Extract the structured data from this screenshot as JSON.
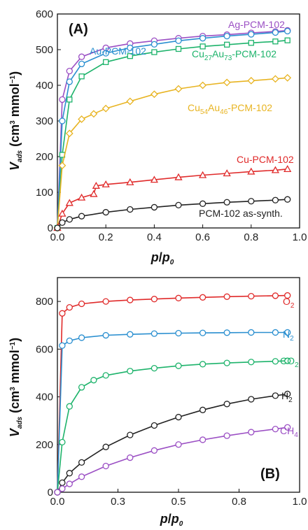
{
  "chart_data": [
    {
      "type": "scatter",
      "panel": "(A)",
      "title": "",
      "xlabel": "p/p0",
      "ylabel": "Vads (cm3 mmol-1)",
      "xlim": [
        0,
        1.0
      ],
      "ylim": [
        0,
        600
      ],
      "xticks": [
        "0.0",
        "0.2",
        "0.4",
        "0.6",
        "0.8",
        "1.0"
      ],
      "yticks": [
        "0",
        "100",
        "200",
        "300",
        "400",
        "500",
        "600"
      ],
      "grid": false,
      "series": [
        {
          "name": "Ag-PCM-102",
          "color": "#9b4fc4",
          "marker": "circle",
          "x": [
            0,
            0.02,
            0.05,
            0.1,
            0.2,
            0.3,
            0.4,
            0.5,
            0.6,
            0.7,
            0.8,
            0.9,
            0.95
          ],
          "y": [
            0,
            360,
            440,
            480,
            505,
            517,
            525,
            532,
            538,
            542,
            547,
            551,
            554
          ]
        },
        {
          "name": "Au-PCM-102",
          "color": "#2a8fd0",
          "marker": "circle",
          "x": [
            0,
            0.02,
            0.05,
            0.1,
            0.2,
            0.3,
            0.4,
            0.5,
            0.6,
            0.7,
            0.8,
            0.9,
            0.95
          ],
          "y": [
            0,
            300,
            410,
            460,
            490,
            505,
            515,
            525,
            532,
            538,
            543,
            548,
            552
          ]
        },
        {
          "name": "Cu27Au73-PCM-102",
          "color": "#1db36b",
          "marker": "square",
          "x": [
            0,
            0.02,
            0.05,
            0.1,
            0.2,
            0.3,
            0.4,
            0.5,
            0.6,
            0.7,
            0.8,
            0.9,
            0.95
          ],
          "y": [
            0,
            205,
            360,
            425,
            465,
            482,
            493,
            502,
            509,
            514,
            519,
            523,
            526
          ]
        },
        {
          "name": "Cu54Au46-PCM-102",
          "color": "#e8b422",
          "marker": "diamond",
          "x": [
            0,
            0.02,
            0.05,
            0.1,
            0.15,
            0.2,
            0.3,
            0.4,
            0.5,
            0.6,
            0.7,
            0.8,
            0.9,
            0.95
          ],
          "y": [
            0,
            175,
            265,
            305,
            320,
            335,
            355,
            375,
            390,
            400,
            408,
            413,
            418,
            421
          ]
        },
        {
          "name": "Cu-PCM-102",
          "color": "#e02a2a",
          "marker": "triangle",
          "x": [
            0,
            0.02,
            0.05,
            0.1,
            0.15,
            0.16,
            0.2,
            0.3,
            0.4,
            0.5,
            0.6,
            0.7,
            0.8,
            0.9,
            0.95
          ],
          "y": [
            0,
            40,
            70,
            85,
            95,
            118,
            122,
            128,
            135,
            142,
            148,
            153,
            158,
            162,
            165
          ]
        },
        {
          "name": "PCM-102 as-synth.",
          "color": "#222222",
          "marker": "circle",
          "x": [
            0,
            0.02,
            0.05,
            0.1,
            0.2,
            0.3,
            0.4,
            0.5,
            0.6,
            0.7,
            0.8,
            0.9,
            0.95
          ],
          "y": [
            0,
            15,
            24,
            33,
            44,
            52,
            58,
            64,
            68,
            72,
            75,
            78,
            80
          ]
        }
      ]
    },
    {
      "type": "scatter",
      "panel": "(B)",
      "title": "",
      "xlabel": "p/p0",
      "ylabel": "Vads (cm3 mmol-1)",
      "xlim": [
        0,
        1.0
      ],
      "ylim": [
        0,
        900
      ],
      "xticks": [
        "0.0",
        "0.3",
        "0.5",
        "0.8",
        "1.0"
      ],
      "xtick_values": [
        0,
        0.25,
        0.5,
        0.75,
        1.0
      ],
      "yticks": [
        "0",
        "200",
        "400",
        "600",
        "800"
      ],
      "grid": false,
      "series": [
        {
          "name": "O2",
          "color": "#e02a2a",
          "x": [
            0,
            0.02,
            0.05,
            0.1,
            0.2,
            0.3,
            0.4,
            0.5,
            0.6,
            0.7,
            0.8,
            0.9,
            0.95
          ],
          "y": [
            0,
            750,
            775,
            790,
            800,
            806,
            810,
            814,
            817,
            820,
            822,
            824,
            825
          ]
        },
        {
          "name": "N2",
          "color": "#2a8fd0",
          "x": [
            0,
            0.02,
            0.05,
            0.1,
            0.2,
            0.3,
            0.4,
            0.5,
            0.6,
            0.7,
            0.8,
            0.9,
            0.95
          ],
          "y": [
            0,
            615,
            635,
            648,
            658,
            662,
            665,
            667,
            668,
            669,
            670,
            670,
            670
          ]
        },
        {
          "name": "CO2",
          "color": "#1db36b",
          "x": [
            0,
            0.02,
            0.05,
            0.1,
            0.15,
            0.2,
            0.3,
            0.4,
            0.5,
            0.6,
            0.7,
            0.8,
            0.9,
            0.95
          ],
          "y": [
            0,
            210,
            360,
            440,
            470,
            490,
            508,
            520,
            530,
            537,
            542,
            546,
            549,
            551
          ]
        },
        {
          "name": "H2",
          "color": "#222222",
          "x": [
            0,
            0.02,
            0.05,
            0.1,
            0.2,
            0.3,
            0.4,
            0.5,
            0.6,
            0.7,
            0.8,
            0.9,
            0.95
          ],
          "y": [
            0,
            40,
            80,
            125,
            190,
            240,
            280,
            315,
            345,
            370,
            390,
            405,
            412
          ]
        },
        {
          "name": "CH4",
          "color": "#9b4fc4",
          "x": [
            0,
            0.02,
            0.05,
            0.1,
            0.2,
            0.3,
            0.4,
            0.5,
            0.6,
            0.7,
            0.8,
            0.9,
            0.95
          ],
          "y": [
            0,
            15,
            35,
            65,
            110,
            145,
            175,
            200,
            220,
            237,
            252,
            265,
            272
          ]
        }
      ]
    }
  ],
  "labels": {
    "panel_a": "(A)",
    "panel_b": "(B)",
    "ag": "Ag-PCM-102",
    "au": "Au-PCM-102",
    "cu27_a": "Cu",
    "cu27_s1": "27",
    "cu27_b": "Au",
    "cu27_s2": "73",
    "cu27_c": "-PCM-102",
    "cu54_a": "Cu",
    "cu54_s1": "54",
    "cu54_b": "Au",
    "cu54_s2": "46",
    "cu54_c": "-PCM-102",
    "cu": "Cu-PCM-102",
    "pcm": "PCM-102 as-synth.",
    "o2_a": "O",
    "o2_s": "2",
    "n2_a": "N",
    "n2_s": "2",
    "co2_a": "CO",
    "co2_s": "2",
    "h2_a": "H",
    "h2_s": "2",
    "ch4_a": "CH",
    "ch4_s": "4",
    "x_p": "p",
    "x_slash": "/",
    "x_p0": "p",
    "x_0": "0",
    "y_v": "V",
    "y_ads": "ads",
    "y_unit_a": " (cm",
    "y_unit_3": "3",
    "y_unit_b": " mmol",
    "y_unit_m1": "−1",
    "y_unit_c": ")"
  }
}
